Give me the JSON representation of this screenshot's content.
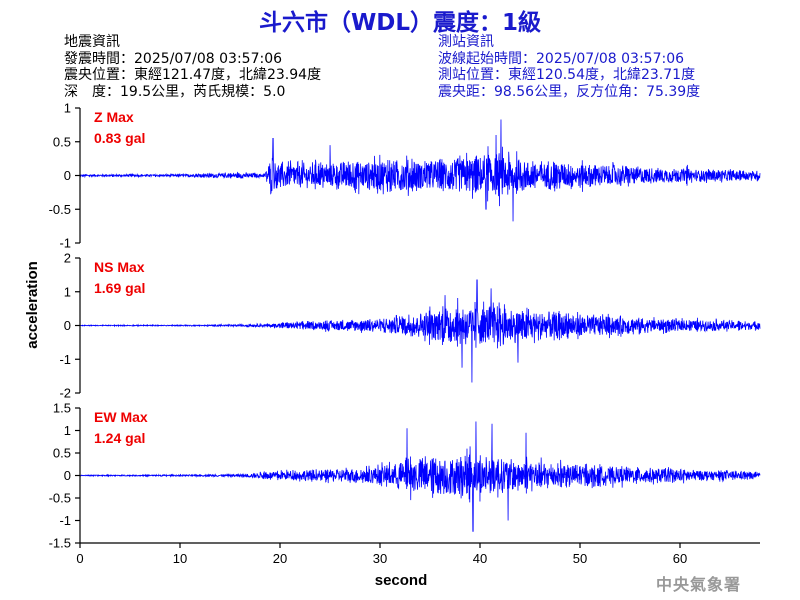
{
  "title": "斗六市（WDL）震度：1級",
  "earthquake_info": {
    "heading": "地震資訊",
    "origin_time": "發震時間：2025/07/08 03:57:06",
    "epicenter": "震央位置：東經121.47度，北緯23.94度",
    "depth_magnitude": "深　度：19.5公里，芮氏規模：5.0"
  },
  "station_info": {
    "heading": "測站資訊",
    "wave_start": "波線起始時間：2025/07/08 03:57:06",
    "station_location": "測站位置：東經120.54度，北緯23.71度",
    "distance_azimuth": "震央距：98.56公里，反方位角：75.39度"
  },
  "footer": "中央氣象署",
  "colors": {
    "title": "#1a1acc",
    "trace": "#0000ff",
    "max_label": "#ee0000",
    "station_text": "#1a1acc"
  },
  "chart_data": {
    "type": "line",
    "xlabel": "second",
    "ylabel": "acceleration",
    "xlim": [
      0,
      68
    ],
    "x_ticks": [
      0,
      10,
      20,
      30,
      40,
      50,
      60
    ],
    "grid": false,
    "panels": [
      {
        "name": "Z",
        "max_title": "Z Max",
        "max_value": "0.83 gal",
        "ylim": [
          -1,
          1
        ],
        "y_ticks": [
          -1,
          -0.5,
          0,
          0.5,
          1
        ],
        "y_tick_labels": [
          "-1",
          "-0.5",
          "0",
          "0.5",
          "1"
        ],
        "envelope": [
          [
            0,
            0.03
          ],
          [
            10,
            0.03
          ],
          [
            14,
            0.06
          ],
          [
            16,
            0.08
          ],
          [
            17,
            0.06
          ],
          [
            18.5,
            0.05
          ],
          [
            19,
            0.45
          ],
          [
            20,
            0.35
          ],
          [
            24,
            0.3
          ],
          [
            28,
            0.38
          ],
          [
            32,
            0.42
          ],
          [
            35,
            0.38
          ],
          [
            38,
            0.45
          ],
          [
            40,
            0.55
          ],
          [
            42,
            0.6
          ],
          [
            44,
            0.42
          ],
          [
            47,
            0.35
          ],
          [
            50,
            0.3
          ],
          [
            53,
            0.28
          ],
          [
            56,
            0.22
          ],
          [
            60,
            0.18
          ],
          [
            64,
            0.14
          ],
          [
            68,
            0.12
          ]
        ],
        "spikes": [
          [
            42.1,
            0.83
          ],
          [
            41.6,
            0.6
          ],
          [
            43.3,
            -0.68
          ],
          [
            19.3,
            0.55
          ],
          [
            40.6,
            -0.5
          ],
          [
            25,
            0.45
          ]
        ]
      },
      {
        "name": "NS",
        "max_title": "NS Max",
        "max_value": "1.69 gal",
        "ylim": [
          -2,
          2
        ],
        "y_ticks": [
          -2,
          -1,
          0,
          1,
          2
        ],
        "y_tick_labels": [
          "-2",
          "-1",
          "0",
          "1",
          "2"
        ],
        "envelope": [
          [
            0,
            0.02
          ],
          [
            12,
            0.03
          ],
          [
            16,
            0.05
          ],
          [
            19,
            0.08
          ],
          [
            20,
            0.15
          ],
          [
            25,
            0.25
          ],
          [
            30,
            0.35
          ],
          [
            33,
            0.6
          ],
          [
            36,
            0.8
          ],
          [
            38,
            1.0
          ],
          [
            40,
            1.05
          ],
          [
            42,
            0.95
          ],
          [
            44,
            0.8
          ],
          [
            47,
            0.7
          ],
          [
            50,
            0.6
          ],
          [
            53,
            0.5
          ],
          [
            56,
            0.4
          ],
          [
            60,
            0.3
          ],
          [
            64,
            0.25
          ],
          [
            68,
            0.2
          ]
        ],
        "spikes": [
          [
            39.2,
            -1.69
          ],
          [
            39.7,
            1.35
          ],
          [
            38.2,
            -1.25
          ],
          [
            41.1,
            1.1
          ],
          [
            43.8,
            -1.1
          ],
          [
            36.5,
            0.9
          ]
        ]
      },
      {
        "name": "EW",
        "max_title": "EW Max",
        "max_value": "1.24 gal",
        "ylim": [
          -1.5,
          1.5
        ],
        "y_ticks": [
          -1.5,
          -1,
          -0.5,
          0,
          0.5,
          1,
          1.5
        ],
        "y_tick_labels": [
          "-1.5",
          "-1",
          "-0.5",
          "0",
          "0.5",
          "1",
          "1.5"
        ],
        "envelope": [
          [
            0,
            0.02
          ],
          [
            12,
            0.03
          ],
          [
            16,
            0.05
          ],
          [
            19,
            0.15
          ],
          [
            22,
            0.2
          ],
          [
            26,
            0.25
          ],
          [
            30,
            0.35
          ],
          [
            33,
            0.65
          ],
          [
            36,
            0.7
          ],
          [
            38,
            0.75
          ],
          [
            40,
            0.8
          ],
          [
            42,
            0.7
          ],
          [
            44,
            0.6
          ],
          [
            47,
            0.5
          ],
          [
            50,
            0.4
          ],
          [
            53,
            0.35
          ],
          [
            56,
            0.3
          ],
          [
            60,
            0.25
          ],
          [
            64,
            0.18
          ],
          [
            68,
            0.12
          ]
        ],
        "spikes": [
          [
            39.3,
            -1.24
          ],
          [
            39.6,
            1.2
          ],
          [
            41.2,
            1.15
          ],
          [
            42.8,
            -1.0
          ],
          [
            32.7,
            1.05
          ],
          [
            44.6,
            0.95
          ]
        ]
      }
    ]
  }
}
